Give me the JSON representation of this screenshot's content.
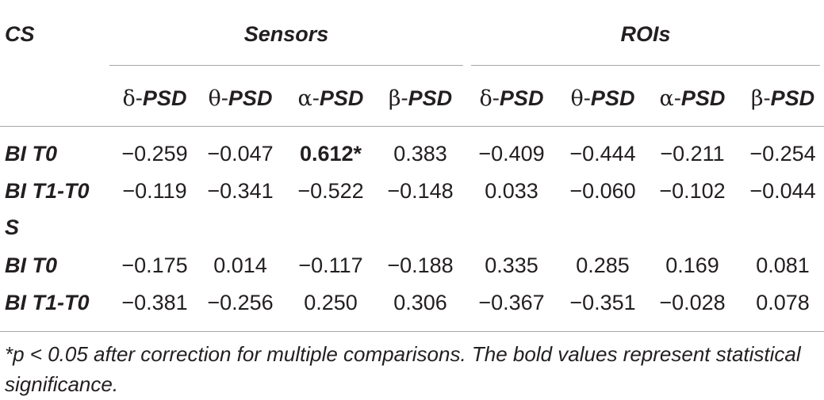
{
  "table": {
    "group_header_label": "CS",
    "group_sensors": "Sensors",
    "group_rois": "ROIs",
    "columns": [
      {
        "greek": "δ-",
        "name": "PSD"
      },
      {
        "greek": "θ-",
        "name": "PSD"
      },
      {
        "greek": "α-",
        "name": "PSD"
      },
      {
        "greek": "β-",
        "name": "PSD"
      },
      {
        "greek": "δ-",
        "name": "PSD"
      },
      {
        "greek": "θ-",
        "name": "PSD"
      },
      {
        "greek": "α-",
        "name": "PSD"
      },
      {
        "greek": "β-",
        "name": "PSD"
      }
    ],
    "rows": [
      {
        "label": "BI T0",
        "values": [
          "−0.259",
          "−0.047",
          "0.612*",
          "0.383",
          "−0.409",
          "−0.444",
          "−0.211",
          "−0.254"
        ],
        "bold": [
          false,
          false,
          true,
          false,
          false,
          false,
          false,
          false
        ]
      },
      {
        "label": "BI T1-T0",
        "values": [
          "−0.119",
          "−0.341",
          "−0.522",
          "−0.148",
          "0.033",
          "−0.060",
          "−0.102",
          "−0.044"
        ],
        "bold": [
          false,
          false,
          false,
          false,
          false,
          false,
          false,
          false
        ]
      },
      {
        "label": "S",
        "values": [
          "",
          "",
          "",
          "",
          "",
          "",
          "",
          ""
        ],
        "bold": [
          false,
          false,
          false,
          false,
          false,
          false,
          false,
          false
        ]
      },
      {
        "label": "BI T0",
        "values": [
          "−0.175",
          "0.014",
          "−0.117",
          "−0.188",
          "0.335",
          "0.285",
          "0.169",
          "0.081"
        ],
        "bold": [
          false,
          false,
          false,
          false,
          false,
          false,
          false,
          false
        ]
      },
      {
        "label": "BI T1-T0",
        "values": [
          "−0.381",
          "−0.256",
          "0.250",
          "0.306",
          "−0.367",
          "−0.351",
          "−0.028",
          "0.078"
        ],
        "bold": [
          false,
          false,
          false,
          false,
          false,
          false,
          false,
          false
        ]
      }
    ]
  },
  "footnote": "*p < 0.05 after correction for multiple comparisons. The bold values represent statistical significance."
}
